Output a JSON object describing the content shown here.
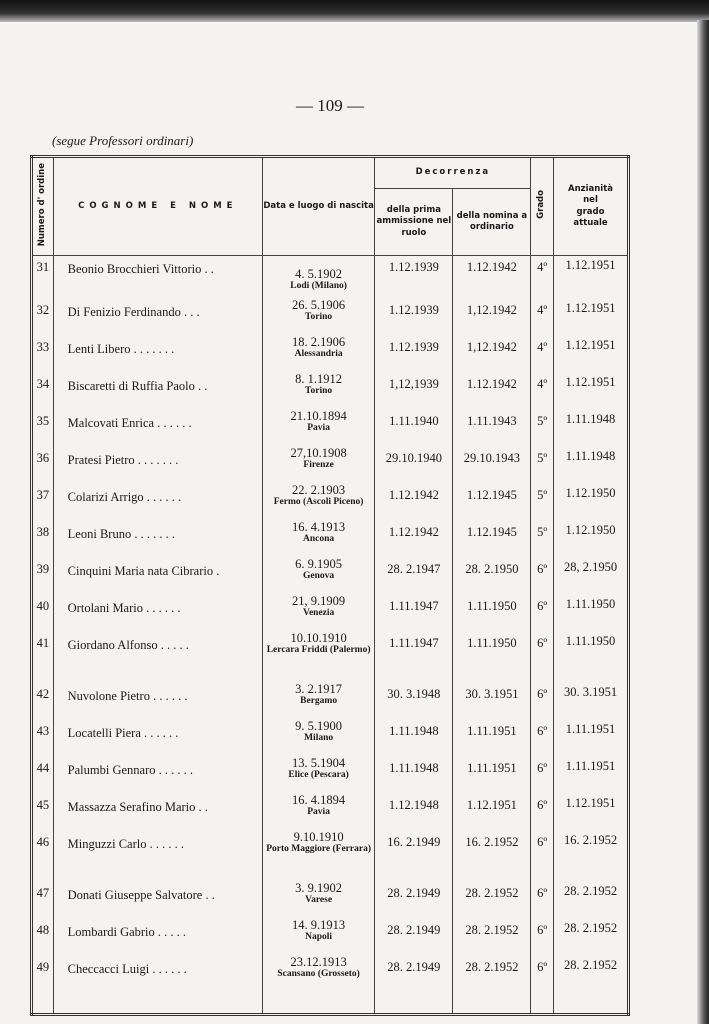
{
  "page_number": "— 109 —",
  "continuation": "(segue Professori ordinari)",
  "headers": {
    "numero": "Numero d' ordine",
    "nome": "COGNOME E NOME",
    "nascita": "Data e luogo di nascita",
    "decorrenza": "Decorrenza",
    "prima": "della prima ammissione nel ruolo",
    "nomina": "della nomina a ordinario",
    "grado": "Grado",
    "anzianita": "Anzianità nel grado attuale"
  },
  "rows": [
    {
      "n": "31",
      "name": "Beonio Brocchieri Vittorio . .",
      "date": "4. 5.1902",
      "place": "Lodi (Milano)",
      "prima": "1.12.1939",
      "nomina": "1.12.1942",
      "grado": "4º",
      "anz": "1.12.1951"
    },
    {
      "n": "32",
      "name": "Di Fenizio Ferdinando . . .",
      "date": "26. 5.1906",
      "place": "Torino",
      "prima": "1.12.1939",
      "nomina": "1,12.1942",
      "grado": "4º",
      "anz": "1.12.1951"
    },
    {
      "n": "33",
      "name": "Lenti Libero . . . . . . .",
      "date": "18. 2.1906",
      "place": "Alessandria",
      "prima": "1.12.1939",
      "nomina": "1,12.1942",
      "grado": "4º",
      "anz": "1.12.1951"
    },
    {
      "n": "34",
      "name": "Biscaretti di Ruffia Paolo . .",
      "date": "8. 1.1912",
      "place": "Torino",
      "prima": "1,12,1939",
      "nomina": "1.12.1942",
      "grado": "4º",
      "anz": "1.12.1951"
    },
    {
      "n": "35",
      "name": "Malcovati Enrica . . . . . .",
      "date": "21.10.1894",
      "place": "Pavia",
      "prima": "1.11.1940",
      "nomina": "1.11.1943",
      "grado": "5º",
      "anz": "1.11.1948"
    },
    {
      "n": "36",
      "name": "Pratesi Pietro . . . . . . .",
      "date": "27,10.1908",
      "place": "Firenze",
      "prima": "29.10.1940",
      "nomina": "29.10.1943",
      "grado": "5º",
      "anz": "1.11.1948"
    },
    {
      "n": "37",
      "name": "Colarizi Arrigo . . . . . .",
      "date": "22. 2.1903",
      "place": "Fermo (Ascoli Piceno)",
      "prima": "1.12.1942",
      "nomina": "1.12.1945",
      "grado": "5º",
      "anz": "1.12.1950"
    },
    {
      "n": "38",
      "name": "Leoni Bruno . . . . . . .",
      "date": "16. 4.1913",
      "place": "Ancona",
      "prima": "1.12.1942",
      "nomina": "1.12.1945",
      "grado": "5º",
      "anz": "1.12.1950"
    },
    {
      "n": "39",
      "name": "Cinquini Maria nata Cibrario .",
      "date": "6. 9.1905",
      "place": "Genova",
      "prima": "28. 2.1947",
      "nomina": "28. 2.1950",
      "grado": "6º",
      "anz": "28, 2.1950"
    },
    {
      "n": "40",
      "name": "Ortolani Mario . . . . . .",
      "date": "21, 9.1909",
      "place": "Venezia",
      "prima": "1.11.1947",
      "nomina": "1.11.1950",
      "grado": "6º",
      "anz": "1.11.1950"
    },
    {
      "n": "41",
      "name": "Giordano Alfonso . . . . .",
      "date": "10.10.1910",
      "place": "Lercara Friddi (Palermo)",
      "prima": "1.11.1947",
      "nomina": "1.11.1950",
      "grado": "6º",
      "anz": "1.11.1950"
    },
    {
      "n": "42",
      "name": "Nuvolone Pietro . . . . . .",
      "date": "3. 2.1917",
      "place": "Bergamo",
      "prima": "30. 3.1948",
      "nomina": "30. 3.1951",
      "grado": "6º",
      "anz": "30. 3.1951"
    },
    {
      "n": "43",
      "name": "Locatelli Piera . . . . . .",
      "date": "9. 5.1900",
      "place": "Milano",
      "prima": "1.11.1948",
      "nomina": "1.11.1951",
      "grado": "6º",
      "anz": "1.11.1951"
    },
    {
      "n": "44",
      "name": "Palumbi Gennaro . . . . . .",
      "date": "13. 5.1904",
      "place": "Elice (Pescara)",
      "prima": "1.11.1948",
      "nomina": "1.11.1951",
      "grado": "6º",
      "anz": "1.11.1951"
    },
    {
      "n": "45",
      "name": "Massazza Serafino Mario . .",
      "date": "16. 4.1894",
      "place": "Pavia",
      "prima": "1.12.1948",
      "nomina": "1.12.1951",
      "grado": "6º",
      "anz": "1.12.1951"
    },
    {
      "n": "46",
      "name": "Minguzzi Carlo . . . . . .",
      "date": "9.10.1910",
      "place": "Porto Maggiore (Ferrara)",
      "prima": "16. 2.1949",
      "nomina": "16. 2.1952",
      "grado": "6º",
      "anz": "16. 2.1952"
    },
    {
      "n": "47",
      "name": "Donati Giuseppe Salvatore . .",
      "date": "3. 9.1902",
      "place": "Varese",
      "prima": "28. 2.1949",
      "nomina": "28. 2.1952",
      "grado": "6º",
      "anz": "28. 2.1952"
    },
    {
      "n": "48",
      "name": "Lombardi Gabrio . . . . .",
      "date": "14. 9.1913",
      "place": "Napoli",
      "prima": "28. 2.1949",
      "nomina": "28. 2.1952",
      "grado": "6º",
      "anz": "28. 2.1952"
    },
    {
      "n": "49",
      "name": "Checcacci Luigi . . . . . .",
      "date": "23.12.1913",
      "place": "Scansano (Grosseto)",
      "prima": "28. 2.1949",
      "nomina": "28. 2.1952",
      "grado": "6º",
      "anz": "28. 2.1952"
    }
  ]
}
